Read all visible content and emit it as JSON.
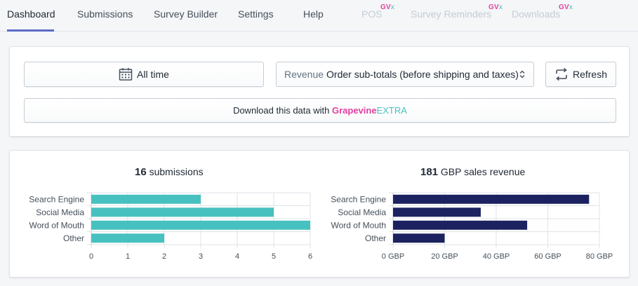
{
  "nav": {
    "tabs": [
      {
        "label": "Dashboard",
        "active": true,
        "disabled": false,
        "badge": ""
      },
      {
        "label": "Submissions",
        "active": false,
        "disabled": false,
        "badge": ""
      },
      {
        "label": "Survey Builder",
        "active": false,
        "disabled": false,
        "badge": ""
      },
      {
        "label": "Settings",
        "active": false,
        "disabled": false,
        "badge": ""
      },
      {
        "label": "Help",
        "active": false,
        "disabled": false,
        "badge": ""
      },
      {
        "label": "POS",
        "active": false,
        "disabled": true,
        "badge": "GVx"
      },
      {
        "label": "Survey Reminders",
        "active": false,
        "disabled": true,
        "badge": "GVx"
      },
      {
        "label": "Downloads",
        "active": false,
        "disabled": true,
        "badge": "GVx"
      }
    ],
    "badge_main": "GV",
    "badge_suffix": "x"
  },
  "filters": {
    "date_range_label": "All time",
    "metric_label": "Revenue",
    "metric_value": "Order sub-totals (before shipping and taxes)",
    "refresh_label": "Refresh",
    "download_prefix": "Download this data with ",
    "download_brand_1": "Grapevine",
    "download_brand_2": "EXTRA"
  },
  "colors": {
    "accent": "#5c6ac4",
    "brand_pink": "#e23fa1",
    "brand_teal": "#47c1bf",
    "submissions_bar": "#47c1bf",
    "revenue_bar": "#1c2260"
  },
  "chart_data": [
    {
      "type": "bar",
      "orientation": "horizontal",
      "title_value": "16",
      "title_suffix": "submissions",
      "categories": [
        "Search Engine",
        "Social Media",
        "Word of Mouth",
        "Other"
      ],
      "values": [
        3,
        5,
        6,
        2
      ],
      "xlim": [
        0,
        6
      ],
      "ticks": [
        "0",
        "1",
        "2",
        "3",
        "4",
        "5",
        "6"
      ],
      "grid": true
    },
    {
      "type": "bar",
      "orientation": "horizontal",
      "title_value": "181",
      "title_suffix": "GBP sales revenue",
      "categories": [
        "Search Engine",
        "Social Media",
        "Word of Mouth",
        "Other"
      ],
      "values": [
        76,
        34,
        52,
        20
      ],
      "xlim": [
        0,
        80
      ],
      "ticks": [
        "0 GBP",
        "20 GBP",
        "40 GBP",
        "60 GBP",
        "80 GBP"
      ],
      "grid": true
    }
  ]
}
